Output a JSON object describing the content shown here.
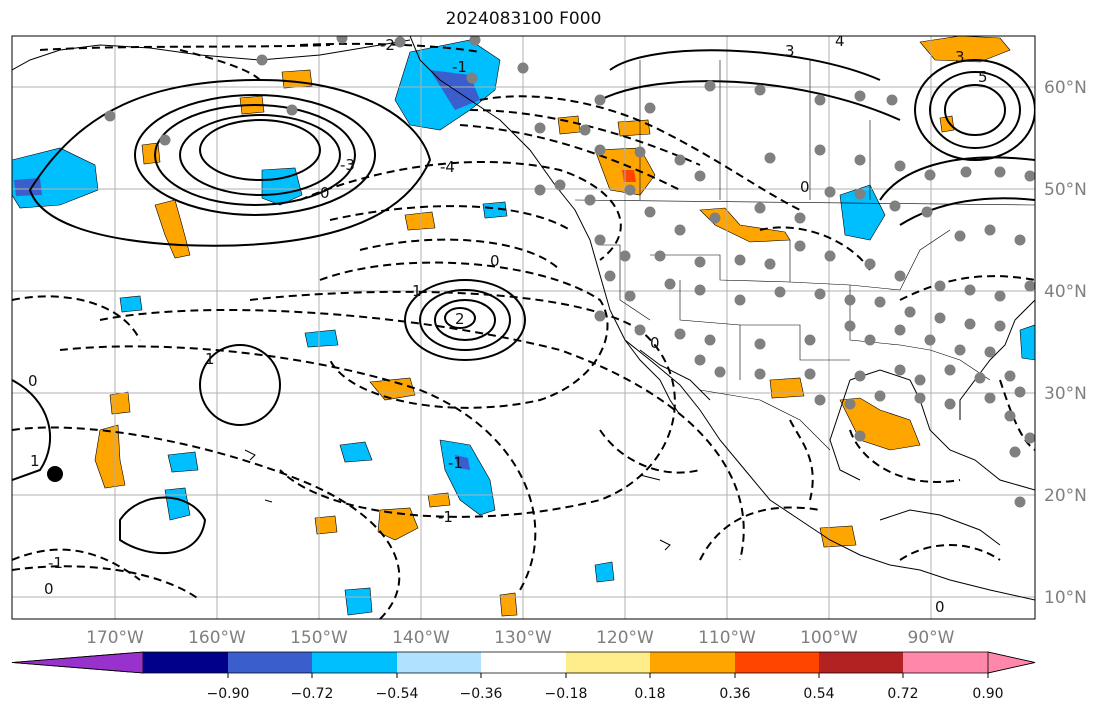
{
  "title": "2024083100 F000",
  "map": {
    "lat_labels": [
      "60°N",
      "50°N",
      "40°N",
      "30°N",
      "20°N",
      "10°N"
    ],
    "lon_labels": [
      "170°W",
      "160°W",
      "150°W",
      "140°W",
      "130°W",
      "120°W",
      "110°W",
      "100°W",
      "90°W"
    ],
    "contour_labels": [
      "-1",
      "-2",
      "-3",
      "-4",
      "0",
      "1",
      "2",
      "3",
      "4",
      "5"
    ]
  },
  "colorbar": {
    "tick_labels": [
      "−0.90",
      "−0.72",
      "−0.54",
      "−0.36",
      "−0.18",
      "0.18",
      "0.36",
      "0.54",
      "0.72",
      "0.90"
    ],
    "colors": [
      "#9932cc",
      "#00008b",
      "#3a5fcd",
      "#00bfff",
      "#b0e2ff",
      "#ffffff",
      "#ffec8b",
      "#ffa500",
      "#ff4500",
      "#b22222",
      "#ff88aa"
    ]
  }
}
